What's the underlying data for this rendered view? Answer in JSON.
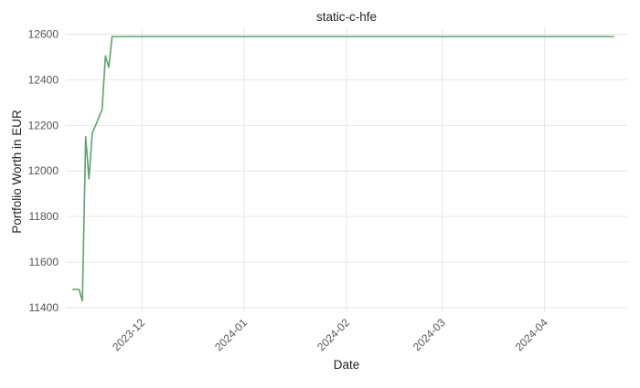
{
  "chart_data": {
    "type": "line",
    "title": "static-c-hfe",
    "xlabel": "Date",
    "ylabel": "Portfolio Worth in EUR",
    "ylim": [
      11380,
      12630
    ],
    "xlim": [
      "2023-11-08",
      "2024-04-26"
    ],
    "yticks": [
      11400,
      11600,
      11800,
      12000,
      12200,
      12400,
      12600
    ],
    "xticks": [
      {
        "date": "2023-12-01",
        "label": "2023-12"
      },
      {
        "date": "2024-01-01",
        "label": "2024-01"
      },
      {
        "date": "2024-02-01",
        "label": "2024-02"
      },
      {
        "date": "2024-03-01",
        "label": "2024-03"
      },
      {
        "date": "2024-04-01",
        "label": "2024-04"
      }
    ],
    "grid": true,
    "series": [
      {
        "color": "#5aa469",
        "points": [
          {
            "x": "2023-11-10",
            "y": 11480
          },
          {
            "x": "2023-11-12",
            "y": 11480
          },
          {
            "x": "2023-11-13",
            "y": 11430
          },
          {
            "x": "2023-11-14",
            "y": 12150
          },
          {
            "x": "2023-11-15",
            "y": 11965
          },
          {
            "x": "2023-11-16",
            "y": 12165
          },
          {
            "x": "2023-11-19",
            "y": 12270
          },
          {
            "x": "2023-11-20",
            "y": 12505
          },
          {
            "x": "2023-11-21",
            "y": 12455
          },
          {
            "x": "2023-11-22",
            "y": 12590
          },
          {
            "x": "2024-04-22",
            "y": 12590
          }
        ]
      }
    ]
  }
}
